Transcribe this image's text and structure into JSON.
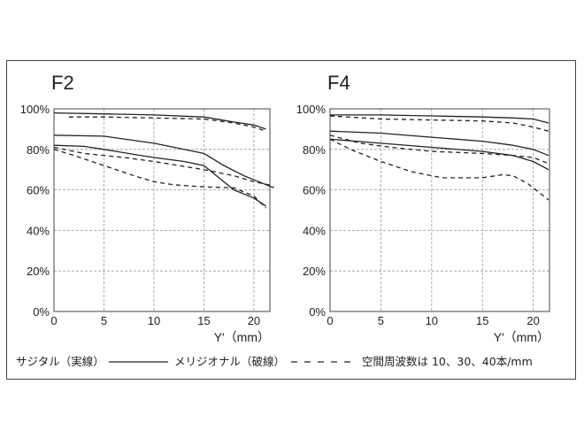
{
  "legend": {
    "sagittal": "サジタル（実線）",
    "meridional": "メリジオナル（破線）",
    "frequencies": "空間周波数は 10、30、40本/mm"
  },
  "colors": {
    "line": "#222222",
    "grid": "#999999",
    "frame": "#444444"
  },
  "chart_data": [
    {
      "type": "line",
      "title": "F2",
      "xlabel": "Y′（mm）",
      "ylabel": "",
      "xlim": [
        0,
        21.6
      ],
      "ylim": [
        0,
        100
      ],
      "xticks": [
        "0",
        "5",
        "10",
        "15",
        "20"
      ],
      "yticks": [
        "0%",
        "20%",
        "40%",
        "60%",
        "80%",
        "100%"
      ],
      "grid": true,
      "series": [
        {
          "name": "sagittal 10本/mm",
          "style": "solid",
          "x": [
            0,
            5,
            10,
            15,
            18,
            20,
            21.2
          ],
          "y": [
            98,
            97.5,
            97,
            96,
            93.5,
            92,
            90
          ]
        },
        {
          "name": "meridional 10本/mm",
          "style": "dashed",
          "x": [
            1.5,
            5,
            10,
            15,
            18,
            20,
            21.2
          ],
          "y": [
            96,
            96,
            95.5,
            95,
            93,
            91,
            89
          ]
        },
        {
          "name": "sagittal 30本/mm",
          "style": "solid",
          "x": [
            0,
            5,
            10,
            15,
            17,
            19,
            21,
            22
          ],
          "y": [
            87,
            86.5,
            83,
            78,
            72,
            67,
            63,
            61
          ]
        },
        {
          "name": "meridional 30本/mm",
          "style": "dashed",
          "x": [
            0,
            3,
            7,
            10,
            15,
            18,
            20,
            22
          ],
          "y": [
            81,
            78,
            76,
            74,
            70,
            67,
            64,
            62
          ]
        },
        {
          "name": "sagittal 40本/mm",
          "style": "solid",
          "x": [
            0,
            3,
            5,
            8,
            10,
            13,
            15,
            16.5,
            18,
            20,
            21.2
          ],
          "y": [
            82,
            81.5,
            80,
            77.5,
            76,
            74,
            72,
            66,
            60,
            56,
            52
          ]
        },
        {
          "name": "meridional 40本/mm",
          "style": "dashed",
          "x": [
            0,
            2,
            5,
            8,
            10,
            12,
            15,
            18,
            20,
            21.2
          ],
          "y": [
            80,
            77,
            72,
            67,
            64,
            62.5,
            61.5,
            61,
            57,
            51
          ]
        }
      ]
    },
    {
      "type": "line",
      "title": "F4",
      "xlabel": "Y′（mm）",
      "ylabel": "",
      "xlim": [
        0,
        21.6
      ],
      "ylim": [
        0,
        100
      ],
      "xticks": [
        "0",
        "5",
        "10",
        "15",
        "20"
      ],
      "yticks": [
        "0%",
        "20%",
        "40%",
        "60%",
        "80%",
        "100%"
      ],
      "grid": true,
      "series": [
        {
          "name": "sagittal 10本/mm",
          "style": "solid",
          "x": [
            0,
            5,
            10,
            15,
            18,
            20,
            21.5
          ],
          "y": [
            97,
            97,
            96.5,
            96,
            95.5,
            95,
            93
          ]
        },
        {
          "name": "meridional 10本/mm",
          "style": "dashed",
          "x": [
            0,
            5,
            10,
            15,
            18,
            20,
            21.5
          ],
          "y": [
            96.5,
            95,
            94.5,
            94,
            93,
            91,
            89
          ]
        },
        {
          "name": "sagittal 30本/mm",
          "style": "solid",
          "x": [
            0,
            5,
            10,
            15,
            18,
            20,
            21.5
          ],
          "y": [
            89,
            88,
            86,
            84,
            82,
            80,
            77
          ]
        },
        {
          "name": "meridional 30本/mm",
          "style": "dashed",
          "x": [
            0,
            3,
            6,
            10,
            15,
            18,
            20,
            21.5
          ],
          "y": [
            87,
            83,
            81,
            79,
            78,
            77,
            76,
            73
          ]
        },
        {
          "name": "sagittal 40本/mm",
          "style": "solid",
          "x": [
            0,
            5,
            10,
            15,
            18,
            20,
            21.5
          ],
          "y": [
            85,
            83,
            81,
            79,
            77,
            74,
            70
          ]
        },
        {
          "name": "meridional 40本/mm",
          "style": "dashed",
          "x": [
            0,
            2,
            5,
            8,
            11,
            15,
            17,
            18,
            19.5,
            21.5
          ],
          "y": [
            85,
            80,
            74,
            69,
            66,
            66,
            67.5,
            67,
            63,
            55
          ]
        }
      ]
    }
  ]
}
